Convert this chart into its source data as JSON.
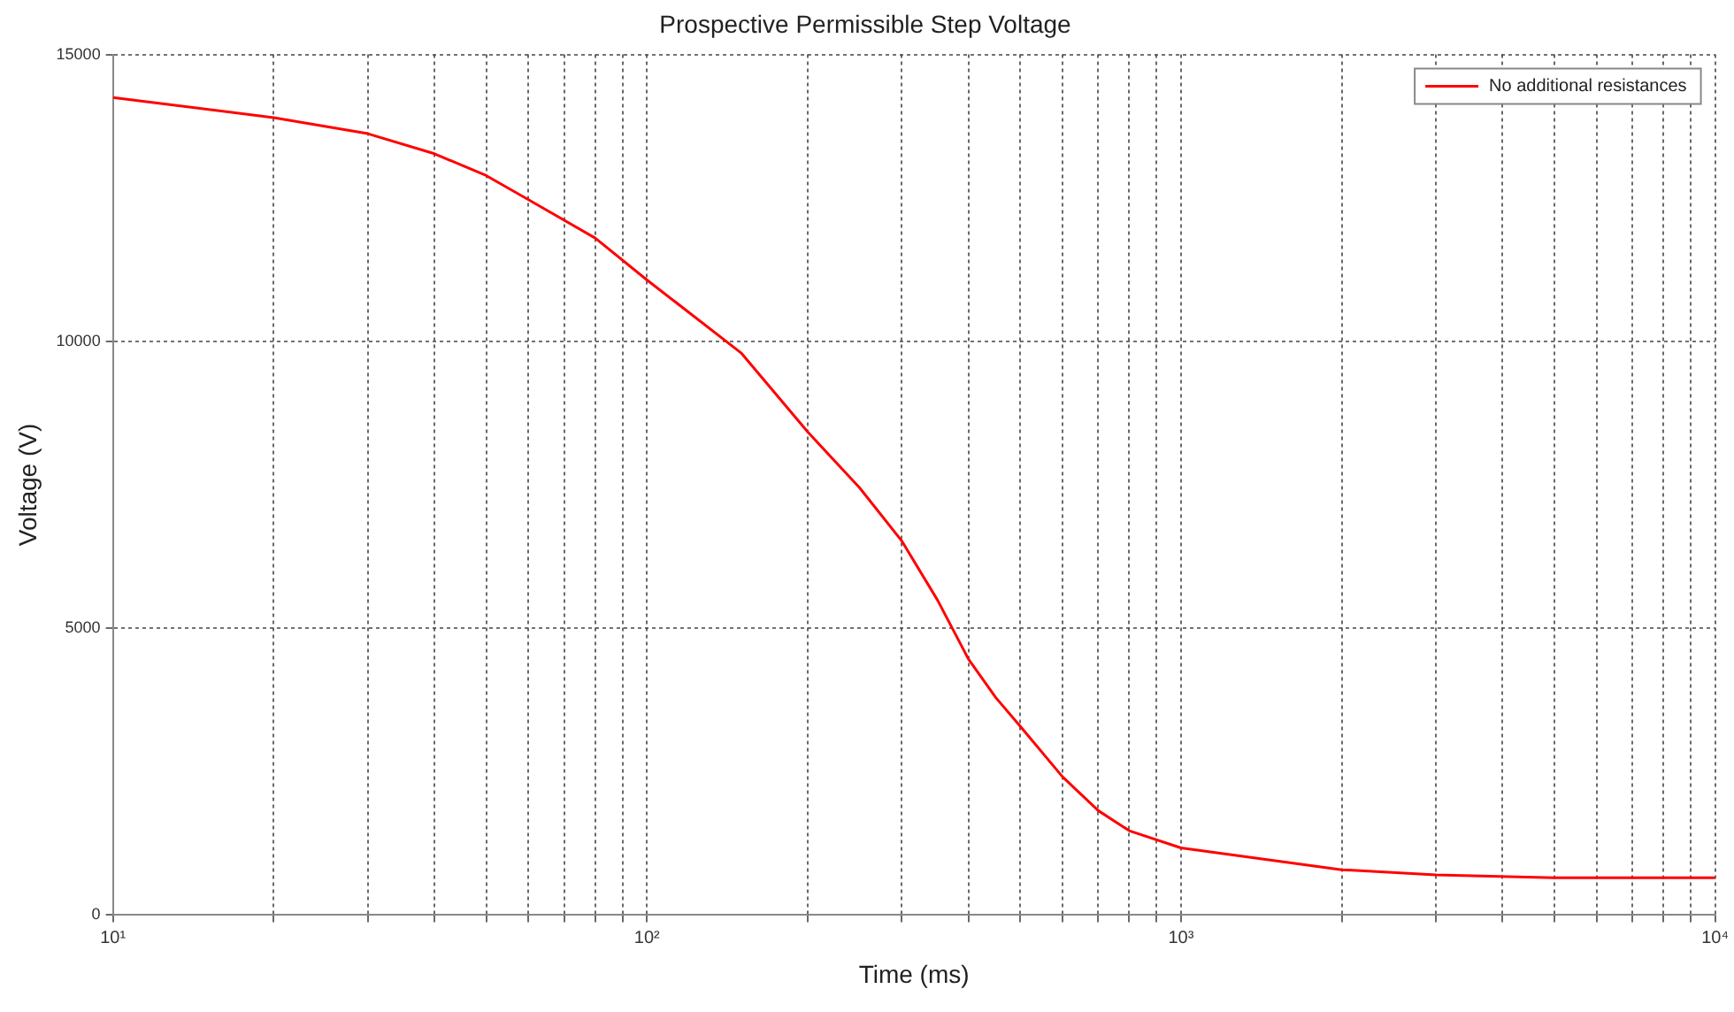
{
  "chart_data": {
    "type": "line",
    "title": "Prospective Permissible Step Voltage",
    "xlabel": "Time (ms)",
    "ylabel": "Voltage (V)",
    "x": [
      10,
      20,
      30,
      40,
      50,
      60,
      80,
      100,
      150,
      200,
      250,
      300,
      350,
      400,
      450,
      500,
      600,
      700,
      800,
      1000,
      2000,
      3000,
      5000,
      10000
    ],
    "series": [
      {
        "name": "No additional resistances",
        "color": "#ff0000",
        "values": [
          14250,
          13900,
          13620,
          13270,
          12890,
          12470,
          11800,
          11070,
          9800,
          8420,
          7450,
          6520,
          5490,
          4460,
          3790,
          3290,
          2410,
          1820,
          1470,
          1170,
          790,
          700,
          650,
          650
        ]
      }
    ],
    "log": "x",
    "xlim": [
      10,
      10000
    ],
    "xticks": [
      {
        "value": 10,
        "label": "10¹"
      },
      {
        "value": 20,
        "label": null
      },
      {
        "value": 30,
        "label": null
      },
      {
        "value": 40,
        "label": null
      },
      {
        "value": 50,
        "label": null
      },
      {
        "value": 60,
        "label": null
      },
      {
        "value": 70,
        "label": null
      },
      {
        "value": 80,
        "label": null
      },
      {
        "value": 90,
        "label": null
      },
      {
        "value": 100,
        "label": "10²"
      },
      {
        "value": 200,
        "label": null
      },
      {
        "value": 300,
        "label": null
      },
      {
        "value": 400,
        "label": null
      },
      {
        "value": 500,
        "label": null
      },
      {
        "value": 600,
        "label": null
      },
      {
        "value": 700,
        "label": null
      },
      {
        "value": 800,
        "label": null
      },
      {
        "value": 900,
        "label": null
      },
      {
        "value": 1000,
        "label": "10³"
      },
      {
        "value": 2000,
        "label": null
      },
      {
        "value": 3000,
        "label": null
      },
      {
        "value": 4000,
        "label": null
      },
      {
        "value": 5000,
        "label": null
      },
      {
        "value": 6000,
        "label": null
      },
      {
        "value": 7000,
        "label": null
      },
      {
        "value": 8000,
        "label": null
      },
      {
        "value": 9000,
        "label": null
      },
      {
        "value": 10000,
        "label": "10⁴"
      }
    ],
    "ylim": [
      0,
      15000
    ],
    "yticks": [
      0,
      5000,
      10000,
      15000
    ],
    "grid": true,
    "legend": "top right",
    "marker": "none",
    "line_style": "solid"
  }
}
